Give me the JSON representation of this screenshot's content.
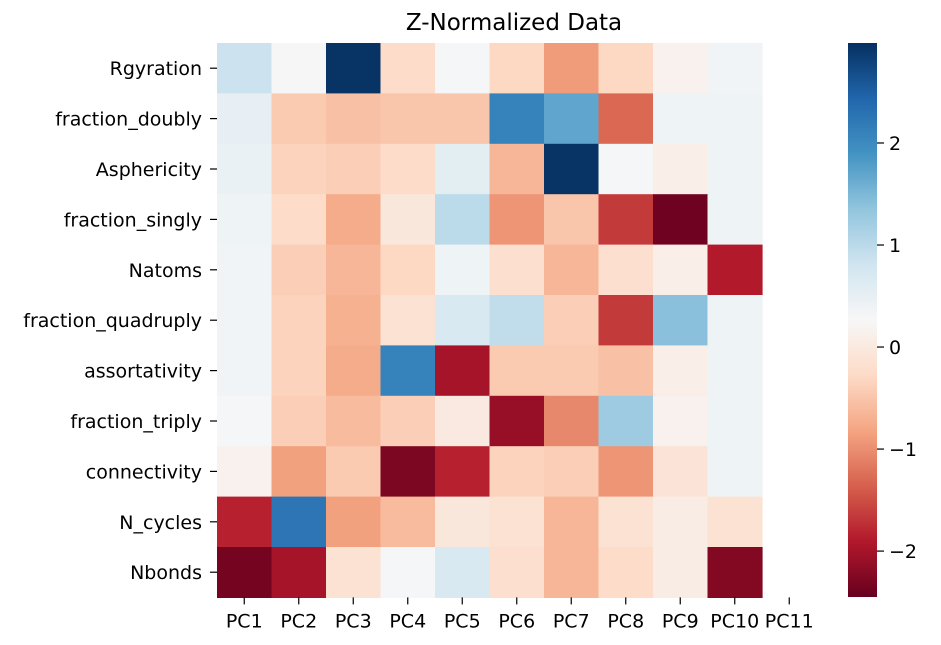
{
  "chart_data": {
    "type": "heatmap",
    "title": "Z-Normalized Data",
    "xlabel": "",
    "ylabel": "",
    "x_categories": [
      "PC1",
      "PC2",
      "PC3",
      "PC4",
      "PC5",
      "PC6",
      "PC7",
      "PC8",
      "PC9",
      "PC10",
      "PC11"
    ],
    "y_categories": [
      "Rgyration",
      "fraction_doubly",
      "Asphericity",
      "fraction_singly",
      "Natoms",
      "fraction_quadruply",
      "assortativity",
      "fraction_triply",
      "connectivity",
      "N_cycles",
      "Nbonds"
    ],
    "values": [
      [
        0.85,
        0.25,
        2.95,
        -0.25,
        0.3,
        -0.3,
        -0.9,
        -0.3,
        0.15,
        0.35,
        null
      ],
      [
        0.5,
        -0.45,
        -0.55,
        -0.5,
        -0.5,
        2.1,
        1.7,
        -1.3,
        0.4,
        0.4,
        null
      ],
      [
        0.45,
        -0.35,
        -0.4,
        -0.25,
        0.55,
        -0.65,
        2.95,
        0.3,
        0.1,
        0.4,
        null
      ],
      [
        0.4,
        -0.25,
        -0.75,
        -0.05,
        1.0,
        -0.95,
        -0.5,
        -1.65,
        -2.4,
        0.4,
        null
      ],
      [
        0.35,
        -0.4,
        -0.65,
        -0.3,
        0.4,
        -0.2,
        -0.65,
        -0.2,
        0.1,
        -1.9,
        null
      ],
      [
        0.35,
        -0.35,
        -0.7,
        -0.15,
        0.7,
        0.95,
        -0.4,
        -1.65,
        1.4,
        0.4,
        null
      ],
      [
        0.35,
        -0.35,
        -0.75,
        2.1,
        -2.0,
        -0.45,
        -0.45,
        -0.55,
        0.1,
        0.4,
        null
      ],
      [
        0.3,
        -0.4,
        -0.6,
        -0.4,
        0.0,
        -2.1,
        -1.05,
        1.25,
        0.15,
        0.4,
        null
      ],
      [
        0.15,
        -0.85,
        -0.45,
        -2.3,
        -1.85,
        -0.35,
        -0.4,
        -0.95,
        -0.1,
        0.4,
        null
      ],
      [
        -1.85,
        2.25,
        -0.85,
        -0.6,
        -0.05,
        -0.15,
        -0.65,
        -0.15,
        0.05,
        -0.15,
        null
      ],
      [
        -2.35,
        -2.0,
        -0.15,
        0.3,
        0.7,
        -0.2,
        -0.65,
        -0.25,
        0.05,
        -2.25,
        null
      ]
    ],
    "colormap": "RdBu",
    "vmin": -2.45,
    "vmax": 2.98,
    "colorbar_ticks": [
      -2,
      -1,
      0,
      1,
      2
    ],
    "colorbar_tick_labels": [
      "−2",
      "−1",
      "0",
      "1",
      "2"
    ]
  }
}
